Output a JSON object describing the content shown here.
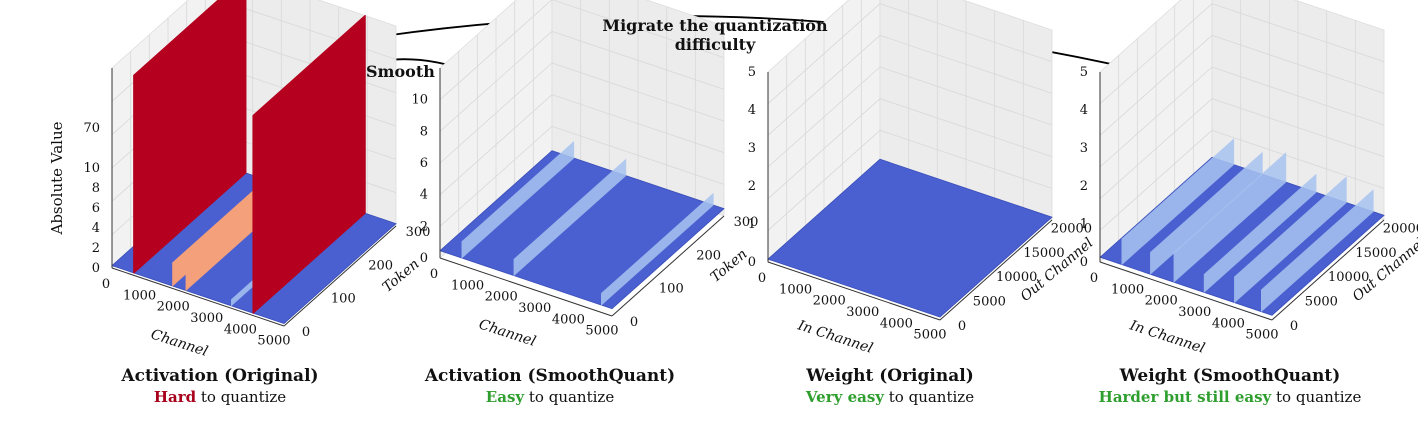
{
  "annotations": {
    "migrate_line1": "Migrate the quantization",
    "migrate_line2": "difficulty",
    "smooth": "Smooth"
  },
  "colors": {
    "surface_blue": "#4a5fd0",
    "outlier_red": "#b5001f",
    "outlier_salmon": "#f4a07a",
    "light_blue": "#a8c4f0",
    "hard_red": "#a8001a",
    "easy_green": "#2e9e2e"
  },
  "chart_data": [
    {
      "type": "surface3d",
      "title": "Activation (Original)",
      "subtitle": {
        "highlight": "Hard",
        "rest": " to quantize",
        "highlight_color": "#a8001a"
      },
      "zlabel": "Absolute Value",
      "xlabel": "Channel",
      "ylabel": "Token",
      "x_ticks": [
        "0",
        "1000",
        "2000",
        "3000",
        "4000",
        "5000"
      ],
      "y_ticks": [
        "0",
        "100",
        "200",
        "300"
      ],
      "z_ticks": [
        "0",
        "2",
        "4",
        "6",
        "8",
        "10",
        "70"
      ],
      "xlim": [
        0,
        5120
      ],
      "ylim": [
        0,
        300
      ],
      "zlim": [
        0,
        70
      ],
      "baseline_value": 0.5,
      "outlier_channels": [
        {
          "channel": 650,
          "value": 70,
          "color": "red"
        },
        {
          "channel": 1800,
          "value": 9,
          "color": "salmon"
        },
        {
          "channel": 2200,
          "value": 10,
          "color": "salmon"
        },
        {
          "channel": 4200,
          "value": 70,
          "color": "red"
        },
        {
          "channel": 3550,
          "value": 3,
          "color": "light"
        }
      ]
    },
    {
      "type": "surface3d",
      "title": "Activation (SmoothQuant)",
      "subtitle": {
        "highlight": "Easy",
        "rest": " to quantize",
        "highlight_color": "#2e9e2e"
      },
      "xlabel": "Channel",
      "ylabel": "Token",
      "x_ticks": [
        "0",
        "1000",
        "2000",
        "3000",
        "4000",
        "5000"
      ],
      "y_ticks": [
        "0",
        "100",
        "200",
        "300"
      ],
      "z_ticks": [
        "0",
        "2",
        "4",
        "6",
        "8",
        "10"
      ],
      "xlim": [
        0,
        5120
      ],
      "ylim": [
        0,
        300
      ],
      "zlim": [
        0,
        12
      ],
      "baseline_value": 0.4,
      "outlier_channels": [
        {
          "channel": 650,
          "value": 1.5,
          "color": "light"
        },
        {
          "channel": 2200,
          "value": 1.5,
          "color": "light"
        },
        {
          "channel": 4800,
          "value": 1.2,
          "color": "light"
        }
      ]
    },
    {
      "type": "surface3d",
      "title": "Weight (Original)",
      "subtitle": {
        "highlight": "Very easy",
        "rest": " to quantize",
        "highlight_color": "#2e9e2e"
      },
      "xlabel": "In Channel",
      "ylabel": "Out Channel",
      "x_ticks": [
        "0",
        "1000",
        "2000",
        "3000",
        "4000",
        "5000"
      ],
      "y_ticks": [
        "0",
        "5000",
        "10000",
        "15000",
        "20000"
      ],
      "z_ticks": [
        "0",
        "1",
        "2",
        "3",
        "4",
        "5"
      ],
      "xlim": [
        0,
        5120
      ],
      "ylim": [
        0,
        20480
      ],
      "zlim": [
        0,
        5
      ],
      "baseline_value": 0.05,
      "outlier_channels": []
    },
    {
      "type": "surface3d",
      "title": "Weight (SmoothQuant)",
      "subtitle": {
        "highlight": "Harder but still easy",
        "rest": " to quantize",
        "highlight_color": "#2e9e2e"
      },
      "xlabel": "In Channel",
      "ylabel": "Out Channel",
      "x_ticks": [
        "0",
        "1000",
        "2000",
        "3000",
        "4000",
        "5000"
      ],
      "y_ticks": [
        "0",
        "5000",
        "10000",
        "15000",
        "20000"
      ],
      "z_ticks": [
        "0",
        "1",
        "2",
        "3",
        "4",
        "5"
      ],
      "xlim": [
        0,
        5120
      ],
      "ylim": [
        0,
        20480
      ],
      "zlim": [
        0,
        5
      ],
      "baseline_value": 0.1,
      "outlier_channels": [
        {
          "channel": 650,
          "value": 0.8,
          "color": "light"
        },
        {
          "channel": 1500,
          "value": 0.7,
          "color": "light"
        },
        {
          "channel": 2200,
          "value": 0.9,
          "color": "light"
        },
        {
          "channel": 3100,
          "value": 0.6,
          "color": "light"
        },
        {
          "channel": 4000,
          "value": 0.8,
          "color": "light"
        },
        {
          "channel": 4800,
          "value": 0.7,
          "color": "light"
        }
      ]
    }
  ]
}
